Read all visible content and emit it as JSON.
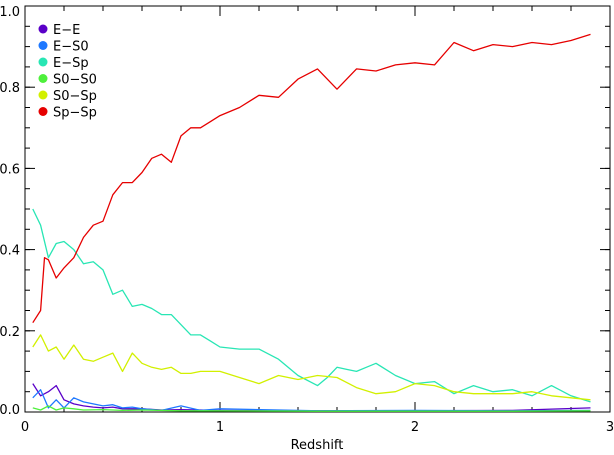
{
  "chart_data": {
    "type": "line",
    "xlabel": "Redshift",
    "ylabel": "",
    "xlim": [
      0,
      3
    ],
    "ylim": [
      0,
      1
    ],
    "grid": false,
    "legend_position": "top-left",
    "x_ticks": [
      0,
      1,
      2,
      3
    ],
    "x_tick_labels": [
      "0",
      "1",
      "2",
      "3"
    ],
    "y_ticks": [
      0,
      0.2,
      0.4,
      0.6,
      0.8,
      1.0
    ],
    "y_tick_labels": [
      "0.0",
      "0.2",
      "0.4",
      "0.6",
      "0.8",
      "1.0"
    ],
    "series": [
      {
        "name": "E−E",
        "color": "#5a00c8",
        "x": [
          0.04,
          0.08,
          0.12,
          0.16,
          0.2,
          0.25,
          0.3,
          0.35,
          0.4,
          0.45,
          0.5,
          0.6,
          0.7,
          0.8,
          0.9,
          1.0,
          1.5,
          2.0,
          2.5,
          2.9
        ],
        "y": [
          0.07,
          0.04,
          0.05,
          0.065,
          0.03,
          0.02,
          0.015,
          0.012,
          0.01,
          0.012,
          0.008,
          0.008,
          0.005,
          0.006,
          0.005,
          0.004,
          0.003,
          0.003,
          0.004,
          0.01
        ]
      },
      {
        "name": "E−S0",
        "color": "#1e78ff",
        "x": [
          0.04,
          0.08,
          0.12,
          0.16,
          0.2,
          0.25,
          0.3,
          0.35,
          0.4,
          0.45,
          0.5,
          0.55,
          0.6,
          0.7,
          0.8,
          0.9,
          1.0,
          1.5,
          2.0,
          2.5,
          2.9
        ],
        "y": [
          0.035,
          0.055,
          0.01,
          0.03,
          0.01,
          0.035,
          0.025,
          0.02,
          0.015,
          0.018,
          0.01,
          0.012,
          0.008,
          0.004,
          0.015,
          0.004,
          0.008,
          0.003,
          0.004,
          0.003,
          0.004
        ]
      },
      {
        "name": "E−Sp",
        "color": "#28e6b4",
        "x": [
          0.04,
          0.08,
          0.12,
          0.16,
          0.2,
          0.25,
          0.3,
          0.35,
          0.4,
          0.45,
          0.5,
          0.55,
          0.6,
          0.65,
          0.7,
          0.75,
          0.8,
          0.85,
          0.9,
          0.95,
          1.0,
          1.1,
          1.2,
          1.3,
          1.4,
          1.5,
          1.55,
          1.6,
          1.65,
          1.7,
          1.75,
          1.8,
          1.9,
          2.0,
          2.1,
          2.2,
          2.3,
          2.4,
          2.5,
          2.6,
          2.7,
          2.8,
          2.9
        ],
        "y": [
          0.5,
          0.46,
          0.38,
          0.415,
          0.42,
          0.4,
          0.365,
          0.37,
          0.35,
          0.29,
          0.3,
          0.26,
          0.265,
          0.255,
          0.24,
          0.24,
          0.215,
          0.19,
          0.19,
          0.175,
          0.16,
          0.155,
          0.155,
          0.13,
          0.09,
          0.065,
          0.085,
          0.11,
          0.105,
          0.1,
          0.11,
          0.12,
          0.09,
          0.07,
          0.075,
          0.045,
          0.065,
          0.05,
          0.055,
          0.04,
          0.065,
          0.04,
          0.025
        ]
      },
      {
        "name": "S0−S0",
        "color": "#4ef03c",
        "x": [
          0.04,
          0.08,
          0.12,
          0.16,
          0.2,
          0.25,
          0.3,
          0.4,
          0.5,
          0.6,
          0.8,
          1.0,
          1.5,
          2.0,
          2.5,
          2.9
        ],
        "y": [
          0.01,
          0.005,
          0.015,
          0.005,
          0.01,
          0.008,
          0.005,
          0.006,
          0.004,
          0.005,
          0.003,
          0.003,
          0.002,
          0.002,
          0.002,
          0.003
        ]
      },
      {
        "name": "S0−Sp",
        "color": "#d2f000",
        "x": [
          0.04,
          0.08,
          0.12,
          0.16,
          0.2,
          0.25,
          0.3,
          0.35,
          0.4,
          0.45,
          0.5,
          0.55,
          0.6,
          0.65,
          0.7,
          0.75,
          0.8,
          0.85,
          0.9,
          0.95,
          1.0,
          1.1,
          1.2,
          1.3,
          1.4,
          1.5,
          1.6,
          1.7,
          1.8,
          1.9,
          2.0,
          2.1,
          2.2,
          2.3,
          2.4,
          2.5,
          2.6,
          2.7,
          2.8,
          2.9
        ],
        "y": [
          0.16,
          0.19,
          0.15,
          0.16,
          0.13,
          0.165,
          0.13,
          0.125,
          0.135,
          0.145,
          0.1,
          0.145,
          0.12,
          0.11,
          0.105,
          0.11,
          0.095,
          0.095,
          0.1,
          0.1,
          0.1,
          0.085,
          0.07,
          0.09,
          0.08,
          0.09,
          0.085,
          0.06,
          0.045,
          0.05,
          0.07,
          0.065,
          0.05,
          0.045,
          0.045,
          0.045,
          0.05,
          0.04,
          0.035,
          0.03
        ]
      },
      {
        "name": "Sp−Sp",
        "color": "#e60000",
        "x": [
          0.04,
          0.08,
          0.1,
          0.12,
          0.16,
          0.2,
          0.25,
          0.3,
          0.35,
          0.4,
          0.45,
          0.5,
          0.55,
          0.6,
          0.65,
          0.7,
          0.75,
          0.8,
          0.85,
          0.9,
          0.95,
          1.0,
          1.1,
          1.2,
          1.3,
          1.4,
          1.5,
          1.6,
          1.7,
          1.8,
          1.9,
          2.0,
          2.1,
          2.2,
          2.3,
          2.4,
          2.5,
          2.6,
          2.7,
          2.8,
          2.9
        ],
        "y": [
          0.22,
          0.25,
          0.38,
          0.375,
          0.33,
          0.355,
          0.38,
          0.43,
          0.46,
          0.47,
          0.535,
          0.565,
          0.565,
          0.59,
          0.625,
          0.635,
          0.615,
          0.68,
          0.7,
          0.7,
          0.715,
          0.73,
          0.75,
          0.78,
          0.775,
          0.82,
          0.845,
          0.795,
          0.845,
          0.84,
          0.855,
          0.86,
          0.855,
          0.91,
          0.89,
          0.905,
          0.9,
          0.91,
          0.905,
          0.915,
          0.93
        ]
      }
    ]
  }
}
